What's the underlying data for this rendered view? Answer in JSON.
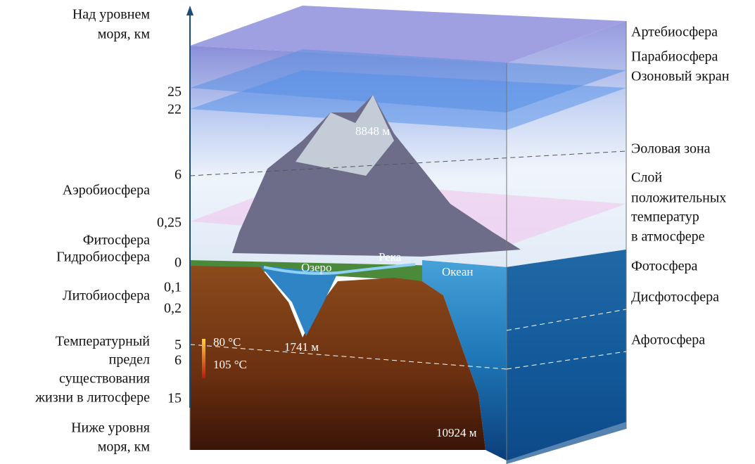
{
  "axis": {
    "top_label": [
      "Над уровнем",
      "моря, км"
    ],
    "bottom_label": [
      "Ниже уровня",
      "моря, км"
    ],
    "ticks": [
      "25",
      "22",
      "6",
      "0,25",
      "0",
      "0,1",
      "0,2",
      "5",
      "6",
      "15"
    ]
  },
  "left_labels": {
    "aerobiosphere": "Аэробиосфера",
    "phytosphere": "Фитосфера",
    "hydrobiosphere": "Гидробиосфера",
    "lithobiosphere": "Литобиосфера",
    "temperature_limit": [
      "Температурный",
      "предел",
      "существования",
      "жизни в литосфере"
    ]
  },
  "right_labels": {
    "artebiosphere": "Артебиосфера",
    "parabiosphere": "Парабиосфера",
    "ozone": "Озоновый экран",
    "aeolian": "Эоловая зона",
    "positive_temp": [
      "Слой",
      "положительных",
      "температур",
      "в атмосфере"
    ],
    "photosphere": "Фотосфера",
    "dysphotosphere": "Дисфотосфера",
    "aphotosphere": "Афотосфера"
  },
  "inner_labels": {
    "everest": "8848 м",
    "lake": "Озеро",
    "river": "Река",
    "ocean": "Океан",
    "lake_depth": "1741 м",
    "ocean_depth": "10924 м",
    "temp_80": "80 °C",
    "temp_105": "105 °C"
  }
}
